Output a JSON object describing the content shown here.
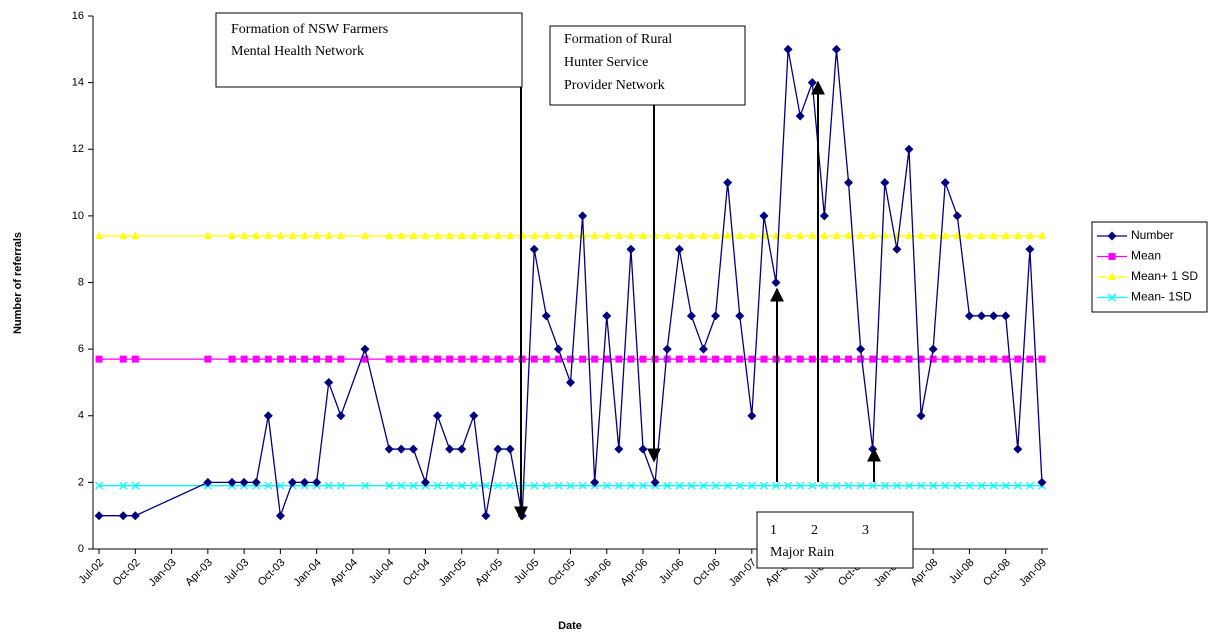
{
  "chart_data": {
    "type": "line",
    "x_label": "Date",
    "y_label": "Number of referrals",
    "x": [
      "Jul-02",
      "Sep-02",
      "Oct-02",
      "Apr-03",
      "Jun-03",
      "Jul-03",
      "Aug-03",
      "Sep-03",
      "Oct-03",
      "Nov-03",
      "Dec-03",
      "Jan-04",
      "Feb-04",
      "Mar-04",
      "May-04",
      "Jul-04",
      "Aug-04",
      "Sep-04",
      "Oct-04",
      "Nov-04",
      "Dec-04",
      "Jan-05",
      "Feb-05",
      "Mar-05",
      "Apr-05",
      "May-05",
      "Jun-05",
      "Jul-05",
      "Aug-05",
      "Sep-05",
      "Oct-05",
      "Nov-05",
      "Dec-05",
      "Jan-06",
      "Feb-06",
      "Mar-06",
      "Apr-06",
      "May-06",
      "Jun-06",
      "Jul-06",
      "Aug-06",
      "Sep-06",
      "Oct-06",
      "Nov-06",
      "Dec-06",
      "Jan-07",
      "Feb-07",
      "Mar-07",
      "Apr-07",
      "May-07",
      "Jun-07",
      "Jul-07",
      "Aug-07",
      "Sep-07",
      "Oct-07",
      "Nov-07",
      "Dec-07",
      "Jan-08",
      "Feb-08",
      "Mar-08",
      "Apr-08",
      "May-08",
      "Jun-08",
      "Jul-08",
      "Aug-08",
      "Sep-08",
      "Oct-08",
      "Nov-08",
      "Dec-08",
      "Jan-09"
    ],
    "series": [
      {
        "name": "Number",
        "color": "#000080",
        "marker": "diamond",
        "values": [
          1,
          1,
          1,
          2,
          2,
          2,
          2,
          4,
          1,
          2,
          2,
          2,
          5,
          4,
          6,
          3,
          3,
          3,
          2,
          4,
          3,
          3,
          4,
          1,
          3,
          3,
          1,
          9,
          7,
          6,
          5,
          10,
          2,
          7,
          3,
          9,
          3,
          2,
          6,
          9,
          7,
          6,
          7,
          11,
          7,
          4,
          10,
          8,
          15,
          13,
          14,
          10,
          15,
          11,
          6,
          3,
          11,
          9,
          12,
          4,
          6,
          11,
          10,
          7,
          7,
          7,
          7,
          3,
          9,
          2
        ]
      },
      {
        "name": "Mean",
        "color": "#ff00ff",
        "marker": "square",
        "values": [
          5.7,
          5.7,
          5.7,
          5.7,
          5.7,
          5.7,
          5.7,
          5.7,
          5.7,
          5.7,
          5.7,
          5.7,
          5.7,
          5.7,
          5.7,
          5.7,
          5.7,
          5.7,
          5.7,
          5.7,
          5.7,
          5.7,
          5.7,
          5.7,
          5.7,
          5.7,
          5.7,
          5.7,
          5.7,
          5.7,
          5.7,
          5.7,
          5.7,
          5.7,
          5.7,
          5.7,
          5.7,
          5.7,
          5.7,
          5.7,
          5.7,
          5.7,
          5.7,
          5.7,
          5.7,
          5.7,
          5.7,
          5.7,
          5.7,
          5.7,
          5.7,
          5.7,
          5.7,
          5.7,
          5.7,
          5.7,
          5.7,
          5.7,
          5.7,
          5.7,
          5.7,
          5.7,
          5.7,
          5.7,
          5.7,
          5.7,
          5.7,
          5.7,
          5.7,
          5.7
        ]
      },
      {
        "name": "Mean+ 1 SD",
        "color": "#ffff00",
        "marker": "triangle",
        "values": [
          9.4,
          9.4,
          9.4,
          9.4,
          9.4,
          9.4,
          9.4,
          9.4,
          9.4,
          9.4,
          9.4,
          9.4,
          9.4,
          9.4,
          9.4,
          9.4,
          9.4,
          9.4,
          9.4,
          9.4,
          9.4,
          9.4,
          9.4,
          9.4,
          9.4,
          9.4,
          9.4,
          9.4,
          9.4,
          9.4,
          9.4,
          9.4,
          9.4,
          9.4,
          9.4,
          9.4,
          9.4,
          9.4,
          9.4,
          9.4,
          9.4,
          9.4,
          9.4,
          9.4,
          9.4,
          9.4,
          9.4,
          9.4,
          9.4,
          9.4,
          9.4,
          9.4,
          9.4,
          9.4,
          9.4,
          9.4,
          9.4,
          9.4,
          9.4,
          9.4,
          9.4,
          9.4,
          9.4,
          9.4,
          9.4,
          9.4,
          9.4,
          9.4,
          9.4,
          9.4
        ]
      },
      {
        "name": "Mean- 1SD",
        "color": "#00ffff",
        "marker": "x",
        "values": [
          1.9,
          1.9,
          1.9,
          1.9,
          1.9,
          1.9,
          1.9,
          1.9,
          1.9,
          1.9,
          1.9,
          1.9,
          1.9,
          1.9,
          1.9,
          1.9,
          1.9,
          1.9,
          1.9,
          1.9,
          1.9,
          1.9,
          1.9,
          1.9,
          1.9,
          1.9,
          1.9,
          1.9,
          1.9,
          1.9,
          1.9,
          1.9,
          1.9,
          1.9,
          1.9,
          1.9,
          1.9,
          1.9,
          1.9,
          1.9,
          1.9,
          1.9,
          1.9,
          1.9,
          1.9,
          1.9,
          1.9,
          1.9,
          1.9,
          1.9,
          1.9,
          1.9,
          1.9,
          1.9,
          1.9,
          1.9,
          1.9,
          1.9,
          1.9,
          1.9,
          1.9,
          1.9,
          1.9,
          1.9,
          1.9,
          1.9,
          1.9,
          1.9,
          1.9,
          1.9
        ]
      }
    ],
    "xlim": [
      "Jul-02",
      "Jan-09"
    ],
    "xticks": [
      "Jul-02",
      "Oct-02",
      "Jan-03",
      "Apr-03",
      "Jul-03",
      "Oct-03",
      "Jan-04",
      "Apr-04",
      "Jul-04",
      "Oct-04",
      "Jan-05",
      "Apr-05",
      "Jul-05",
      "Oct-05",
      "Jan-06",
      "Apr-06",
      "Jul-06",
      "Oct-06",
      "Jan-07",
      "Apr-07",
      "Jul-07",
      "Oct-07",
      "Jan-08",
      "Apr-08",
      "Jul-08",
      "Oct-08",
      "Jan-09"
    ],
    "ylim": [
      0,
      16
    ],
    "yticks": [
      0,
      2,
      4,
      6,
      8,
      10,
      12,
      14,
      16
    ],
    "grid": false,
    "legend": "right",
    "annotations": [
      {
        "text": [
          "Formation of NSW Farmers",
          "Mental Health Network"
        ]
      },
      {
        "text": [
          "Formation of Rural",
          "Hunter Service",
          "Provider Network"
        ]
      },
      {
        "markers": [
          "1",
          "2",
          "3"
        ],
        "text": "Major Rain"
      }
    ]
  }
}
